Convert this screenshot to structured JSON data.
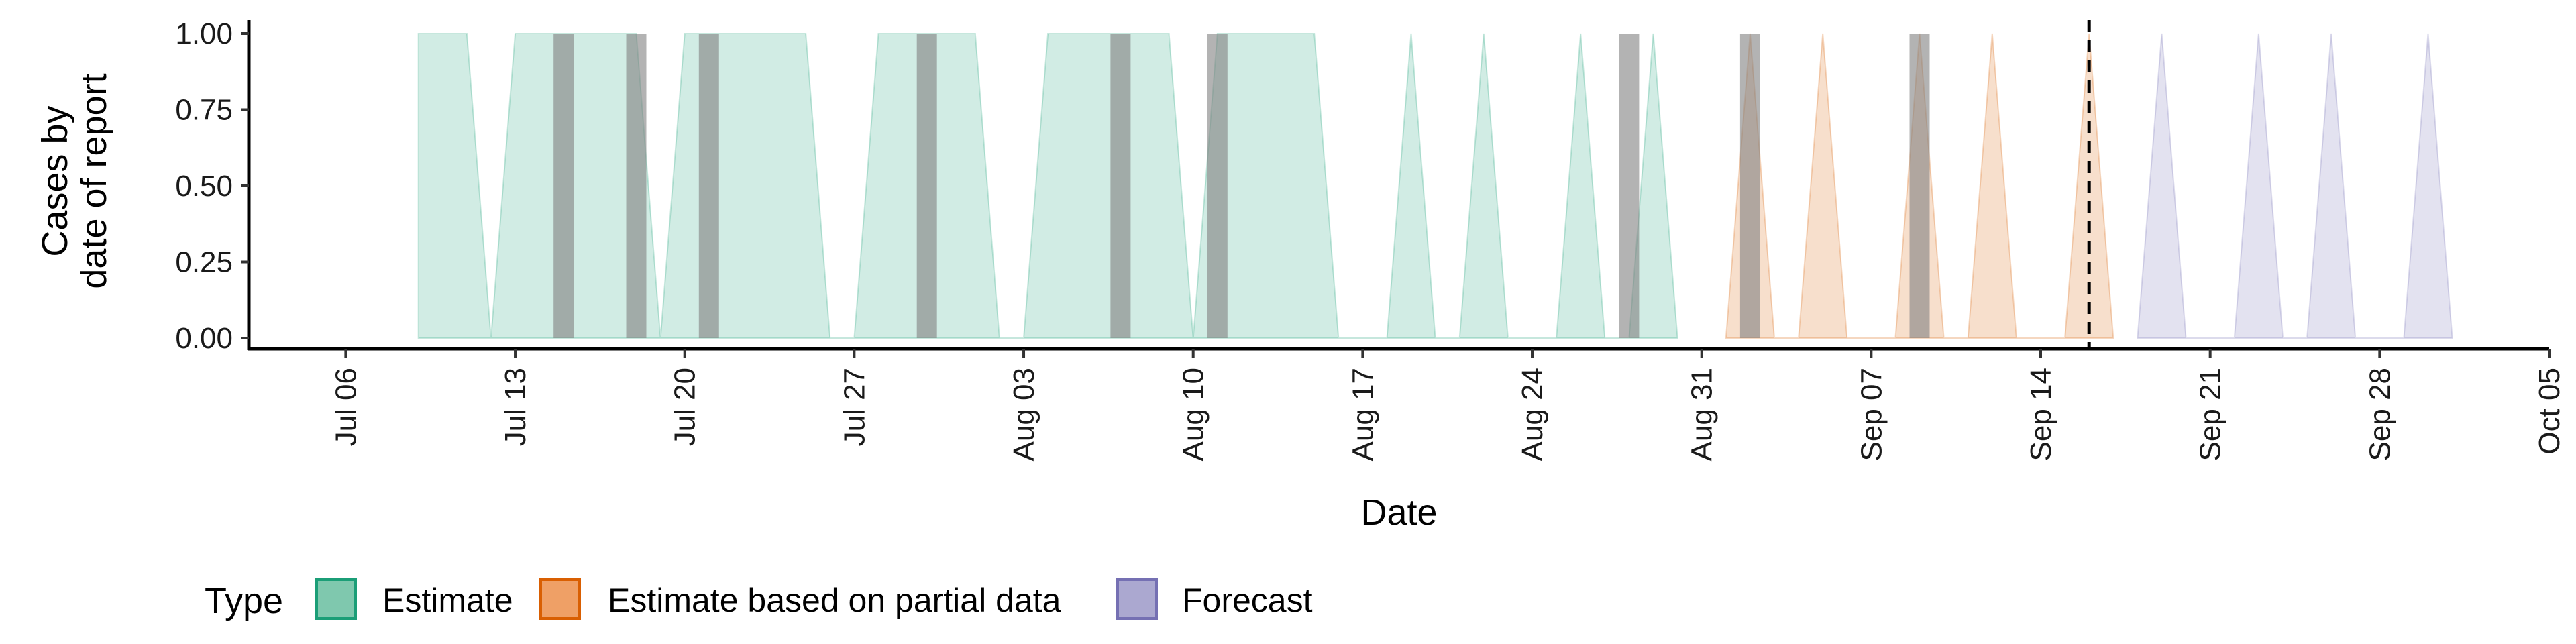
{
  "chart_data": {
    "type": "area",
    "xlabel": "Date",
    "ylabel_lines": [
      "Cases by",
      "date of report"
    ],
    "ylim": [
      0,
      1
    ],
    "yticks": [
      0.0,
      0.25,
      0.5,
      0.75,
      1.0
    ],
    "ytick_labels": [
      "0.00",
      "0.25",
      "0.50",
      "0.75",
      "1.00"
    ],
    "xlim": [
      "2020-07-02",
      "2020-10-05"
    ],
    "xticks": [
      "2020-07-06",
      "2020-07-13",
      "2020-07-20",
      "2020-07-27",
      "2020-08-03",
      "2020-08-10",
      "2020-08-17",
      "2020-08-24",
      "2020-08-31",
      "2020-09-07",
      "2020-09-14",
      "2020-09-21",
      "2020-09-28",
      "2020-10-05"
    ],
    "xtick_labels": [
      "Jul 06",
      "Jul 13",
      "Jul 20",
      "Jul 27",
      "Aug 03",
      "Aug 10",
      "Aug 17",
      "Aug 24",
      "Aug 31",
      "Sep 07",
      "Sep 14",
      "Sep 21",
      "Sep 28",
      "Oct 05"
    ],
    "forecast_cutoff": "2020-09-16",
    "legend": {
      "title": "Type",
      "position": "bottom",
      "items": [
        {
          "label": "Estimate",
          "fill": "#7fc8ae",
          "stroke": "#1b9e77"
        },
        {
          "label": "Estimate based on partial data",
          "fill": "#efa066",
          "stroke": "#d95f02"
        },
        {
          "label": "Forecast",
          "fill": "#aba8d0",
          "stroke": "#7570b3"
        }
      ]
    },
    "series": [
      {
        "name": "Estimate",
        "fill": "#1b9e77",
        "stroke": "#1b9e77",
        "points": [
          [
            "2020-07-09",
            0
          ],
          [
            "2020-07-09",
            1
          ],
          [
            "2020-07-11",
            1
          ],
          [
            "2020-07-12",
            0
          ],
          [
            "2020-07-12",
            0
          ],
          [
            "2020-07-13",
            1
          ],
          [
            "2020-07-18",
            1
          ],
          [
            "2020-07-19",
            0
          ],
          [
            "2020-07-19",
            0
          ],
          [
            "2020-07-20",
            1
          ],
          [
            "2020-07-25",
            1
          ],
          [
            "2020-07-26",
            0
          ],
          [
            "2020-07-27",
            0
          ],
          [
            "2020-07-28",
            1
          ],
          [
            "2020-08-01",
            1
          ],
          [
            "2020-08-02",
            0
          ],
          [
            "2020-08-03",
            0
          ],
          [
            "2020-08-04",
            1
          ],
          [
            "2020-08-09",
            1
          ],
          [
            "2020-08-10",
            0
          ],
          [
            "2020-08-10",
            0
          ],
          [
            "2020-08-11",
            1
          ],
          [
            "2020-08-15",
            1
          ],
          [
            "2020-08-16",
            0
          ],
          [
            "2020-08-18",
            0
          ],
          [
            "2020-08-19",
            1
          ],
          [
            "2020-08-20",
            0
          ],
          [
            "2020-08-21",
            0
          ],
          [
            "2020-08-22",
            1
          ],
          [
            "2020-08-23",
            0
          ],
          [
            "2020-08-25",
            0
          ],
          [
            "2020-08-26",
            1
          ],
          [
            "2020-08-27",
            0
          ],
          [
            "2020-08-28",
            0
          ],
          [
            "2020-08-29",
            1
          ],
          [
            "2020-08-30",
            0
          ]
        ]
      },
      {
        "name": "Estimate based on partial data",
        "fill": "#d95f02",
        "stroke": "#d95f02",
        "points": [
          [
            "2020-09-01",
            0
          ],
          [
            "2020-09-02",
            1
          ],
          [
            "2020-09-03",
            0
          ],
          [
            "2020-09-04",
            0
          ],
          [
            "2020-09-05",
            1
          ],
          [
            "2020-09-06",
            0
          ],
          [
            "2020-09-08",
            0
          ],
          [
            "2020-09-09",
            1
          ],
          [
            "2020-09-10",
            0
          ],
          [
            "2020-09-11",
            0
          ],
          [
            "2020-09-12",
            1
          ],
          [
            "2020-09-13",
            0
          ],
          [
            "2020-09-15",
            0
          ],
          [
            "2020-09-16",
            1
          ],
          [
            "2020-09-17",
            0
          ]
        ]
      },
      {
        "name": "Forecast",
        "fill": "#7570b3",
        "stroke": "#7570b3",
        "points": [
          [
            "2020-09-18",
            0
          ],
          [
            "2020-09-19",
            1
          ],
          [
            "2020-09-20",
            0
          ],
          [
            "2020-09-22",
            0
          ],
          [
            "2020-09-23",
            1
          ],
          [
            "2020-09-24",
            0
          ],
          [
            "2020-09-25",
            0
          ],
          [
            "2020-09-26",
            1
          ],
          [
            "2020-09-27",
            0
          ],
          [
            "2020-09-29",
            0
          ],
          [
            "2020-09-30",
            1
          ],
          [
            "2020-10-01",
            0
          ]
        ]
      }
    ],
    "gray_bars": {
      "color": "#808080",
      "height": 1,
      "dates": [
        "2020-07-15",
        "2020-07-18",
        "2020-07-21",
        "2020-07-30",
        "2020-08-07",
        "2020-08-11",
        "2020-08-28",
        "2020-09-02",
        "2020-09-09"
      ]
    },
    "grid": false
  }
}
